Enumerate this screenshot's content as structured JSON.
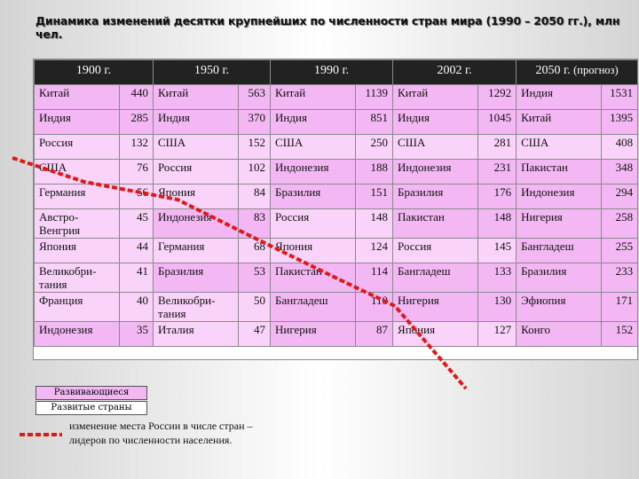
{
  "title": "Динамика изменений десятки крупнейших по численности стран мира (1990 – 2050 гг.), млн чел.",
  "headers": [
    "1900 г.",
    "1950 г.",
    "1990 г.",
    "2002 г.",
    "2050 г."
  ],
  "header_note": "(прогноз)",
  "rows": [
    [
      {
        "c": "Китай",
        "v": "440"
      },
      {
        "c": "Китай",
        "v": "563"
      },
      {
        "c": "Китай",
        "v": "1139"
      },
      {
        "c": "Китай",
        "v": "1292"
      },
      {
        "c": "Индия",
        "v": "1531"
      }
    ],
    [
      {
        "c": "Индия",
        "v": "285"
      },
      {
        "c": "Индия",
        "v": "370"
      },
      {
        "c": "Индия",
        "v": "851"
      },
      {
        "c": "Индия",
        "v": "1045"
      },
      {
        "c": "Китай",
        "v": "1395"
      }
    ],
    [
      {
        "c": "Россия",
        "v": "132"
      },
      {
        "c": "США",
        "v": "152"
      },
      {
        "c": "США",
        "v": "250"
      },
      {
        "c": "США",
        "v": "281"
      },
      {
        "c": "США",
        "v": "408"
      }
    ],
    [
      {
        "c": "США",
        "v": "76"
      },
      {
        "c": "Россия",
        "v": "102"
      },
      {
        "c": "Индонезия",
        "v": "188"
      },
      {
        "c": "Индонезия",
        "v": "231"
      },
      {
        "c": "Пакистан",
        "v": "348"
      }
    ],
    [
      {
        "c": "Германия",
        "v": "56"
      },
      {
        "c": "Япония",
        "v": "84"
      },
      {
        "c": "Бразилия",
        "v": "151"
      },
      {
        "c": "Бразилия",
        "v": "176"
      },
      {
        "c": "Индонезия",
        "v": "294"
      }
    ],
    [
      {
        "c": "Австро-Венгрия",
        "v": "45"
      },
      {
        "c": "Индонезия",
        "v": "83"
      },
      {
        "c": "Россия",
        "v": "148"
      },
      {
        "c": "Пакистан",
        "v": "148"
      },
      {
        "c": "Нигерия",
        "v": "258"
      }
    ],
    [
      {
        "c": "Япония",
        "v": "44"
      },
      {
        "c": "Германия",
        "v": "68"
      },
      {
        "c": "Япония",
        "v": "124"
      },
      {
        "c": "Россия",
        "v": "145"
      },
      {
        "c": "Бангладеш",
        "v": "255"
      }
    ],
    [
      {
        "c": "Великобри-тания",
        "v": "41"
      },
      {
        "c": "Бразилия",
        "v": "53"
      },
      {
        "c": "Пакистан",
        "v": "114"
      },
      {
        "c": "Бангладеш",
        "v": "133"
      },
      {
        "c": "Бразилия",
        "v": "233"
      }
    ],
    [
      {
        "c": "Франция",
        "v": "40"
      },
      {
        "c": "Великобри-тания",
        "v": "50"
      },
      {
        "c": "Бангладеш",
        "v": "110"
      },
      {
        "c": "Нигерия",
        "v": "130"
      },
      {
        "c": "Эфиопия",
        "v": "171"
      }
    ],
    [
      {
        "c": "Индонезия",
        "v": "35"
      },
      {
        "c": "Италия",
        "v": "47"
      },
      {
        "c": "Нигерия",
        "v": "87"
      },
      {
        "c": "Япония",
        "v": "127"
      },
      {
        "c": "Конго",
        "v": "152"
      }
    ]
  ],
  "legend": {
    "developing": "Развивающиеся страны",
    "developed": "Развитые страны",
    "line": "изменение места России в числе стран – лидеров по численности населения."
  },
  "colors": {
    "developing": "#f3b8f3",
    "developed": "#ffffff",
    "russia_line": "#e01818",
    "header_bg": "#222222"
  }
}
